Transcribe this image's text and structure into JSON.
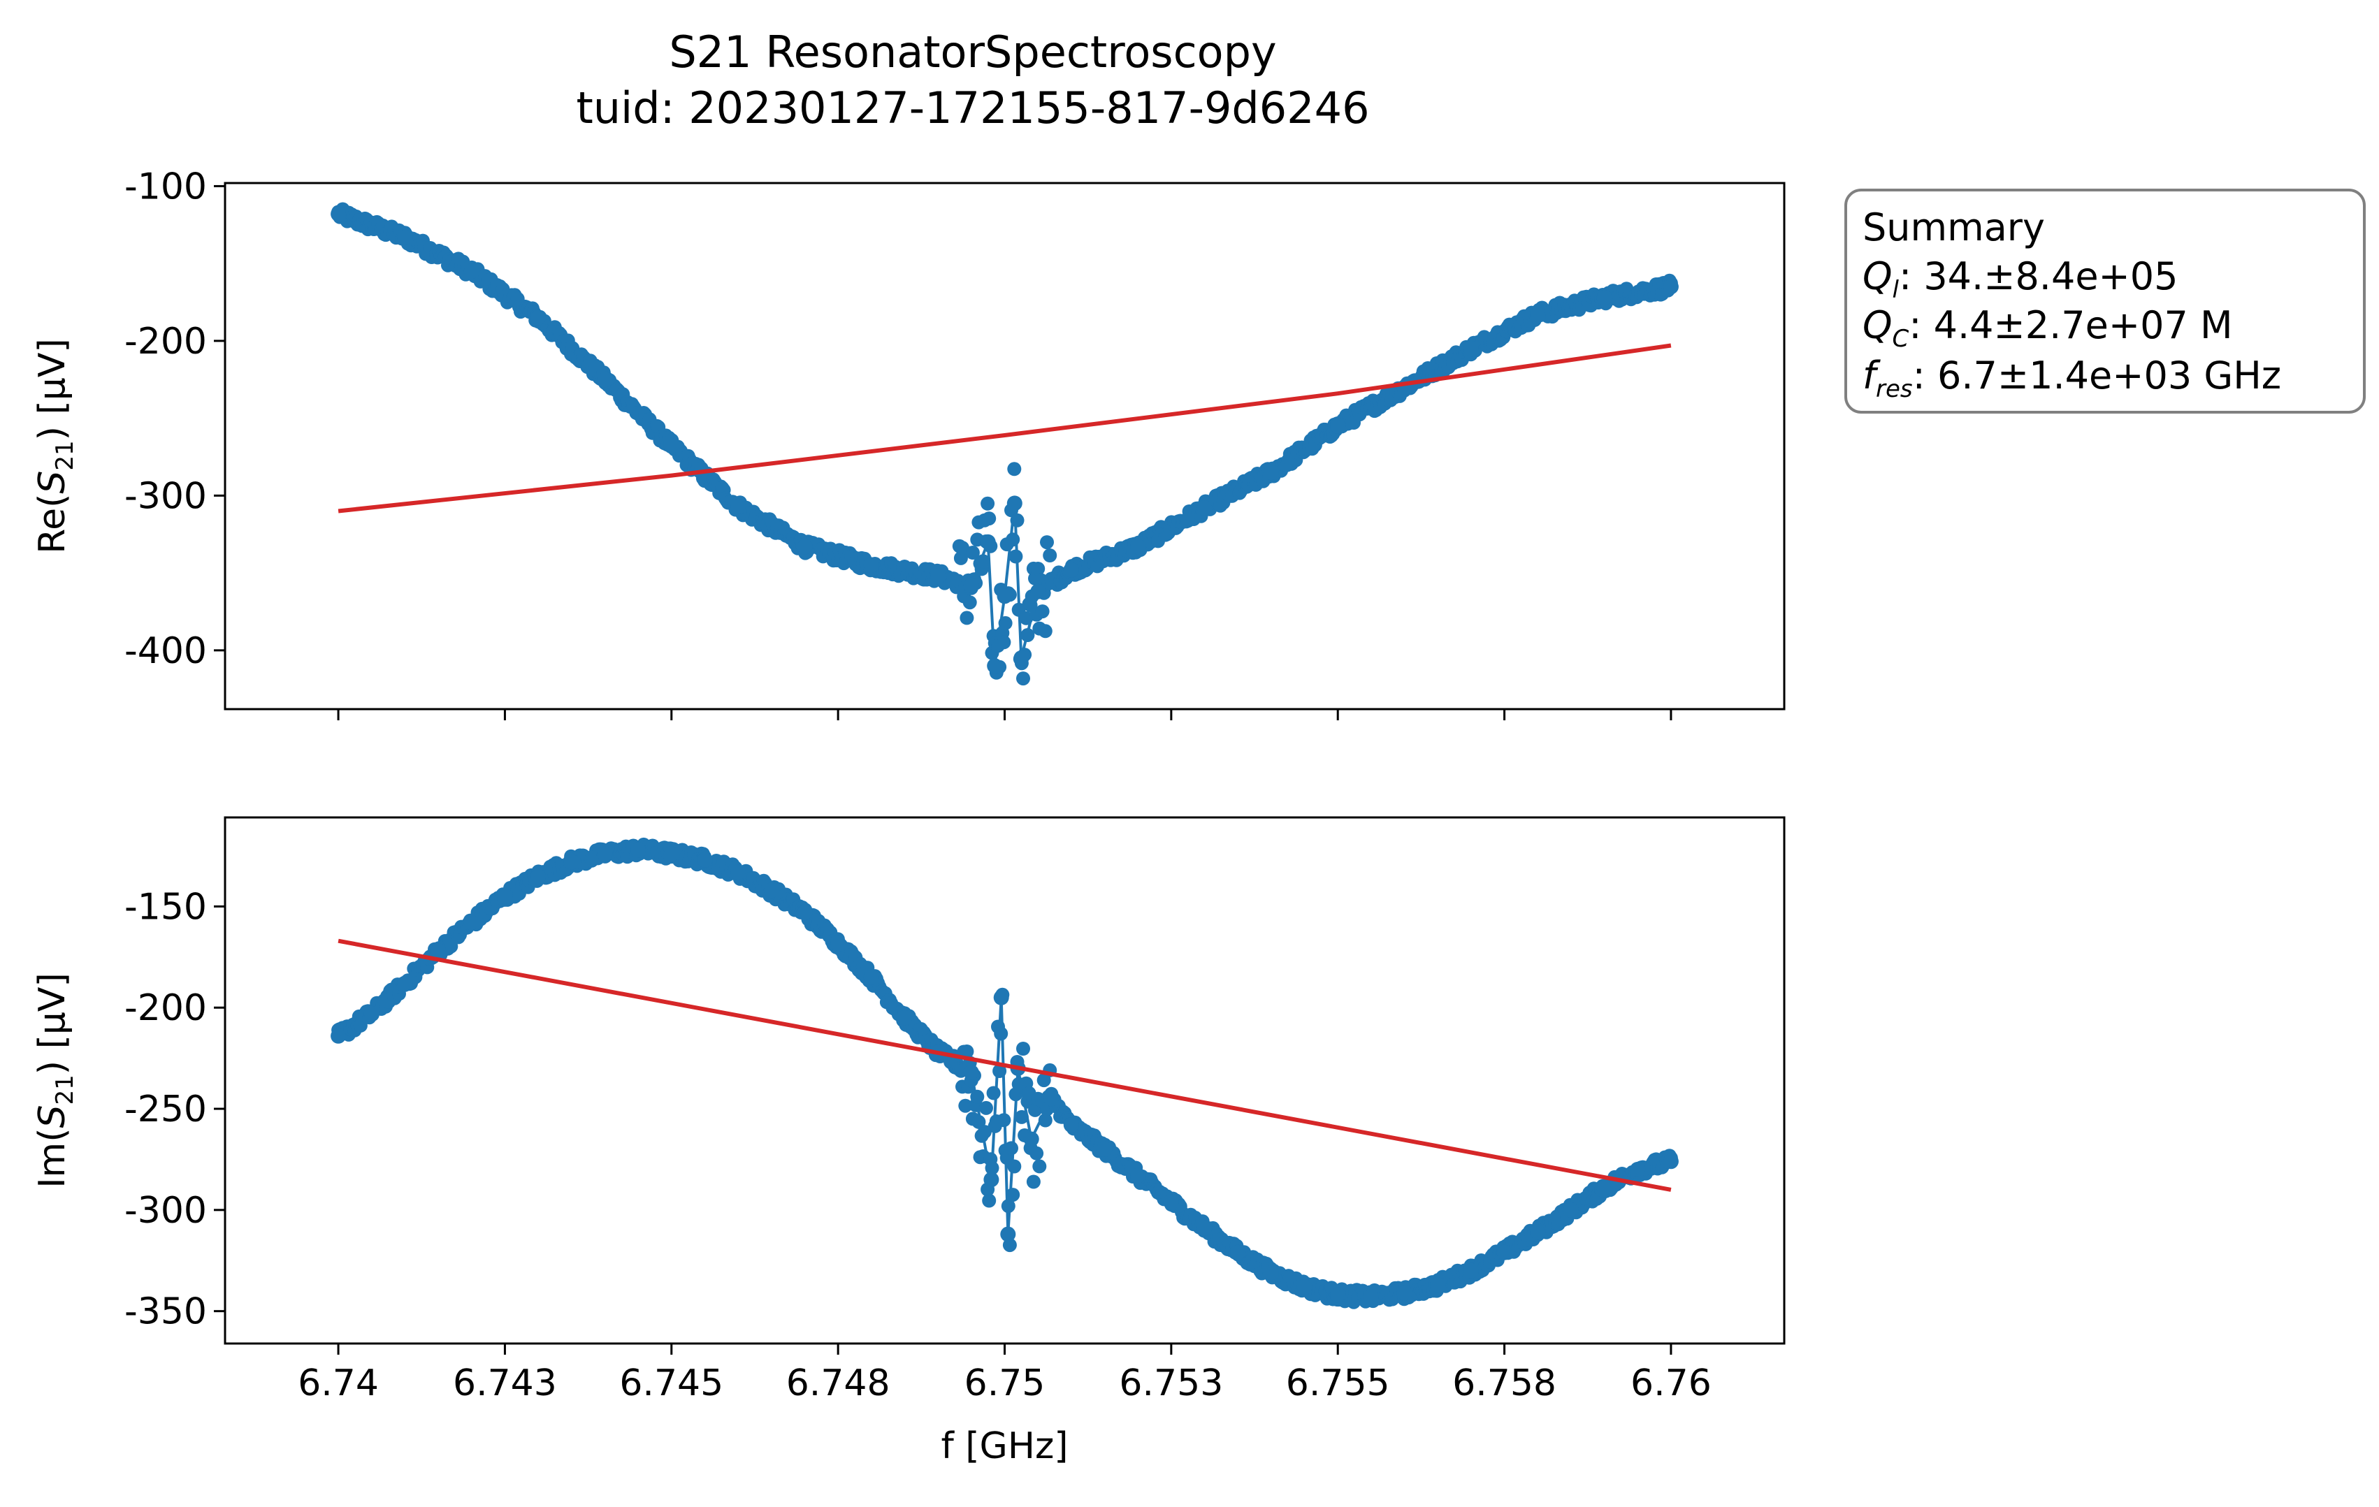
{
  "figure": {
    "title_line1": "S21 ResonatorSpectroscopy",
    "title_line2": "tuid: 20230127-172155-817-9d6246"
  },
  "summary": {
    "heading": "Summary",
    "rows": [
      {
        "sym": "Q",
        "sub": "l",
        "value": ": 34.±8.4e+05"
      },
      {
        "sym": "Q",
        "sub": "C",
        "value": ": 4.4±2.7e+07 M"
      },
      {
        "sym": "f",
        "sub": "res",
        "value": ": 6.7±1.4e+03 GHz"
      }
    ]
  },
  "colors": {
    "data": "#1f77b4",
    "fit": "#d62728",
    "summary_border": "#808080"
  },
  "chart_data": [
    {
      "type": "scatter",
      "title": "",
      "xlabel": "",
      "ylabel_parts": [
        "Re(",
        "S",
        "21",
        ") [µV]"
      ],
      "xlim": [
        6.7383,
        6.7617
      ],
      "ylim": [
        -438,
        -98
      ],
      "xticks": [
        6.74,
        6.7425,
        6.745,
        6.7475,
        6.75,
        6.7525,
        6.755,
        6.7575,
        6.76
      ],
      "xtick_labels": [
        "",
        "",
        "",
        "",
        "",
        "",
        "",
        "",
        ""
      ],
      "yticks": [
        -400,
        -300,
        -200,
        -100
      ],
      "ytick_labels": [
        "-400",
        "-300",
        "-200",
        "-100"
      ],
      "grid": false,
      "series": [
        {
          "kind": "data",
          "x": [
            6.74,
            6.741,
            6.742,
            6.743,
            6.744,
            6.745,
            6.746,
            6.747,
            6.748,
            6.749,
            6.7495,
            6.74975,
            6.74985,
            6.75,
            6.75015,
            6.75025,
            6.7505,
            6.751,
            6.752,
            6.753,
            6.754,
            6.755,
            6.756,
            6.757,
            6.758,
            6.759,
            6.76
          ],
          "y": [
            -118,
            -133,
            -155,
            -185,
            -225,
            -268,
            -307,
            -333,
            -345,
            -352,
            -358,
            -330,
            -410,
            -365,
            -305,
            -405,
            -362,
            -348,
            -333,
            -308,
            -285,
            -255,
            -230,
            -205,
            -183,
            -172,
            -165
          ]
        },
        {
          "kind": "fit",
          "x": [
            6.74,
            6.745,
            6.75,
            6.755,
            6.76
          ],
          "y": [
            -310,
            -287,
            -261,
            -234,
            -203
          ]
        }
      ]
    },
    {
      "type": "scatter",
      "title": "",
      "xlabel": "f [GHz]",
      "ylabel_parts": [
        "Im(",
        "S",
        "21",
        ") [µV]"
      ],
      "xlim": [
        6.7383,
        6.7617
      ],
      "ylim": [
        -366,
        -106
      ],
      "xticks": [
        6.74,
        6.7425,
        6.745,
        6.7475,
        6.75,
        6.7525,
        6.755,
        6.7575,
        6.76
      ],
      "xtick_labels": [
        "6.74",
        "6.743",
        "6.745",
        "6.748",
        "6.75",
        "6.753",
        "6.755",
        "6.758",
        "6.76"
      ],
      "yticks": [
        -350,
        -300,
        -250,
        -200,
        -150
      ],
      "ytick_labels": [
        "-350",
        "-300",
        "-250",
        "-200",
        "-150"
      ],
      "grid": false,
      "series": [
        {
          "kind": "data",
          "x": [
            6.74,
            6.7405,
            6.741,
            6.7415,
            6.742,
            6.7425,
            6.743,
            6.7435,
            6.744,
            6.7445,
            6.745,
            6.7455,
            6.746,
            6.7465,
            6.747,
            6.7475,
            6.748,
            6.7485,
            6.749,
            6.7495,
            6.7498,
            6.74995,
            6.75005,
            6.7502,
            6.7504,
            6.7507,
            6.751,
            6.7515,
            6.752,
            6.7525,
            6.753,
            6.7535,
            6.754,
            6.7545,
            6.755,
            6.7555,
            6.756,
            6.7565,
            6.757,
            6.7575,
            6.758,
            6.7585,
            6.759,
            6.7595,
            6.76
          ],
          "y": [
            -214,
            -203,
            -188,
            -172,
            -158,
            -145,
            -135,
            -128,
            -124,
            -122,
            -124,
            -127,
            -133,
            -142,
            -153,
            -168,
            -185,
            -205,
            -222,
            -232,
            -285,
            -195,
            -312,
            -230,
            -265,
            -245,
            -258,
            -270,
            -283,
            -296,
            -309,
            -321,
            -331,
            -338,
            -342,
            -343,
            -341,
            -337,
            -330,
            -321,
            -311,
            -300,
            -289,
            -280,
            -276
          ]
        },
        {
          "kind": "fit",
          "x": [
            6.74,
            6.76
          ],
          "y": [
            -167,
            -290
          ]
        }
      ]
    }
  ]
}
